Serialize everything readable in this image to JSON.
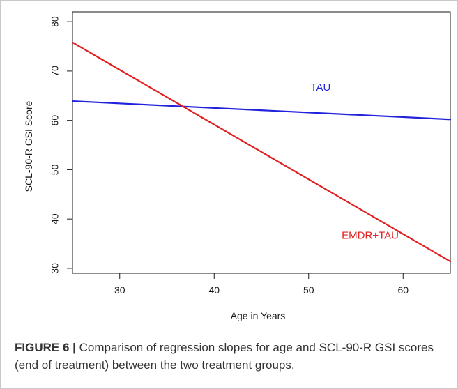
{
  "chart_data": {
    "type": "line",
    "title": "",
    "xlabel": "Age in Years",
    "ylabel": "SCL-90-R GSI Score",
    "xlim": [
      25,
      65
    ],
    "ylim": [
      29,
      82
    ],
    "xticks": [
      30,
      40,
      50,
      60
    ],
    "yticks": [
      30,
      40,
      50,
      60,
      70,
      80
    ],
    "grid": false,
    "series": [
      {
        "name": "TAU",
        "color": "#2222dd",
        "x": [
          25,
          65
        ],
        "y": [
          63.9,
          60.2
        ],
        "label_at": [
          50.2,
          66
        ]
      },
      {
        "name": "EMDR+TAU",
        "color": "#e02020",
        "x": [
          25,
          65
        ],
        "y": [
          75.8,
          31.4
        ],
        "label_at": [
          53.5,
          36
        ]
      }
    ]
  },
  "caption": {
    "lead": "FIGURE 6 |",
    "text": " Comparison of regression slopes for age and SCL-90-R GSI scores (end of treatment) between the two treatment groups."
  }
}
